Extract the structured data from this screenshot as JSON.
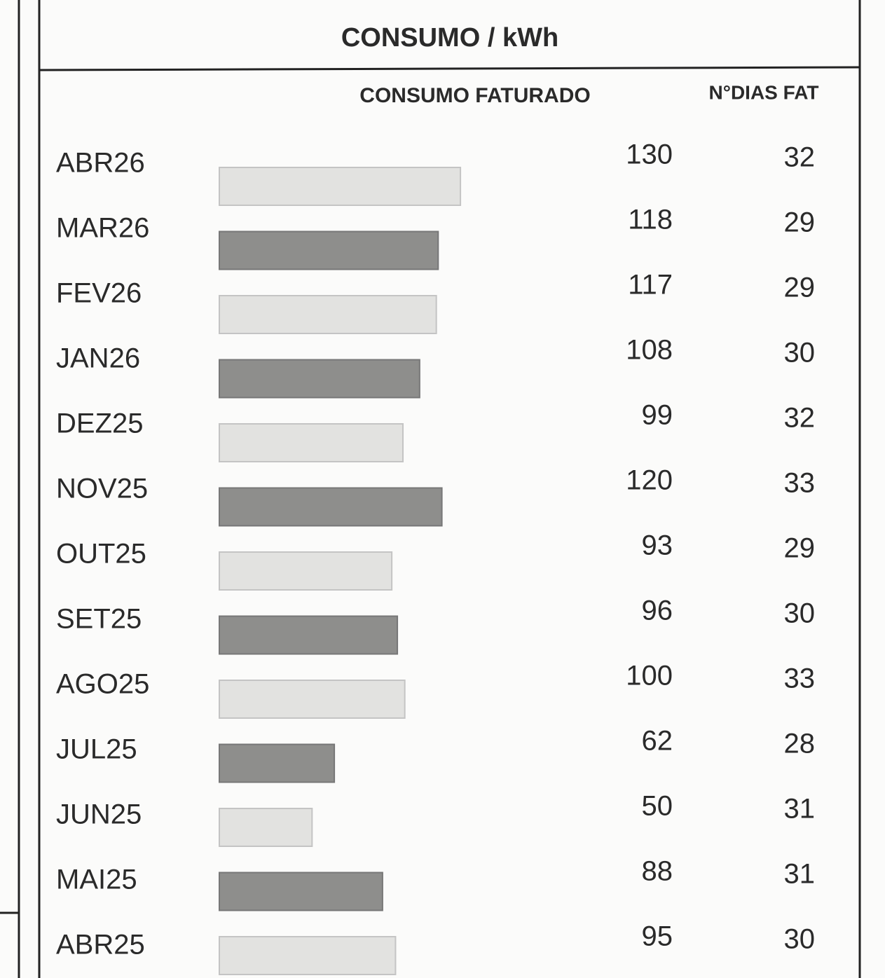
{
  "chart_data": {
    "type": "bar",
    "orientation": "horizontal",
    "title": "CONSUMO / kWh",
    "value_header": "CONSUMO FATURADO",
    "days_header": "N°DIAS FAT",
    "categories": [
      "ABR26",
      "MAR26",
      "FEV26",
      "JAN26",
      "DEZ25",
      "NOV25",
      "OUT25",
      "SET25",
      "AGO25",
      "JUL25",
      "JUN25",
      "MAI25",
      "ABR25"
    ],
    "values": [
      130,
      118,
      117,
      108,
      99,
      120,
      93,
      96,
      100,
      62,
      50,
      88,
      95
    ],
    "days": [
      32,
      29,
      29,
      30,
      32,
      33,
      29,
      30,
      33,
      28,
      31,
      31,
      30
    ],
    "colors": [
      "#e2e2e0",
      "#8e8e8c"
    ],
    "xlim": [
      0,
      150
    ]
  }
}
